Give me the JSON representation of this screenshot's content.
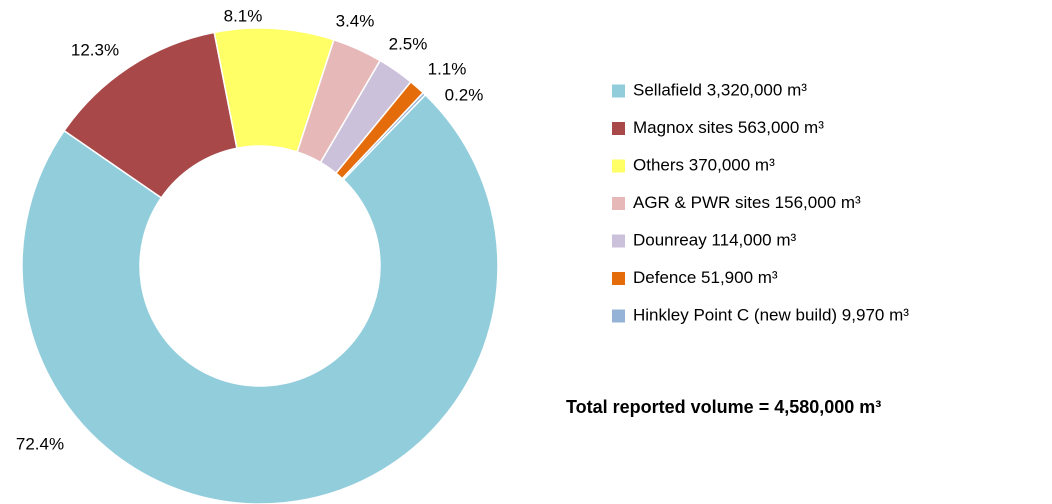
{
  "chart_data": {
    "type": "donut",
    "categories": [
      "Sellafield 3,320,000 m³",
      "Magnox sites 563,000 m³",
      "Others 370,000 m³",
      "AGR & PWR sites 156,000 m³",
      "Dounreay 114,000 m³",
      "Defence 51,900 m³",
      "Hinkley Point C (new build) 9,970 m³"
    ],
    "values": [
      72.4,
      12.3,
      8.1,
      3.4,
      2.5,
      1.1,
      0.2
    ],
    "value_labels": [
      "72.4%",
      "12.3%",
      "8.1%",
      "3.4%",
      "2.5%",
      "1.1%",
      "0.2%"
    ],
    "colors": [
      "#92cddc",
      "#a84848",
      "#ffff66",
      "#e6b9b8",
      "#ccc1da",
      "#e46c0a",
      "#95b3d7"
    ],
    "annotation": "Total reported volume = 4,580,000 m³"
  }
}
